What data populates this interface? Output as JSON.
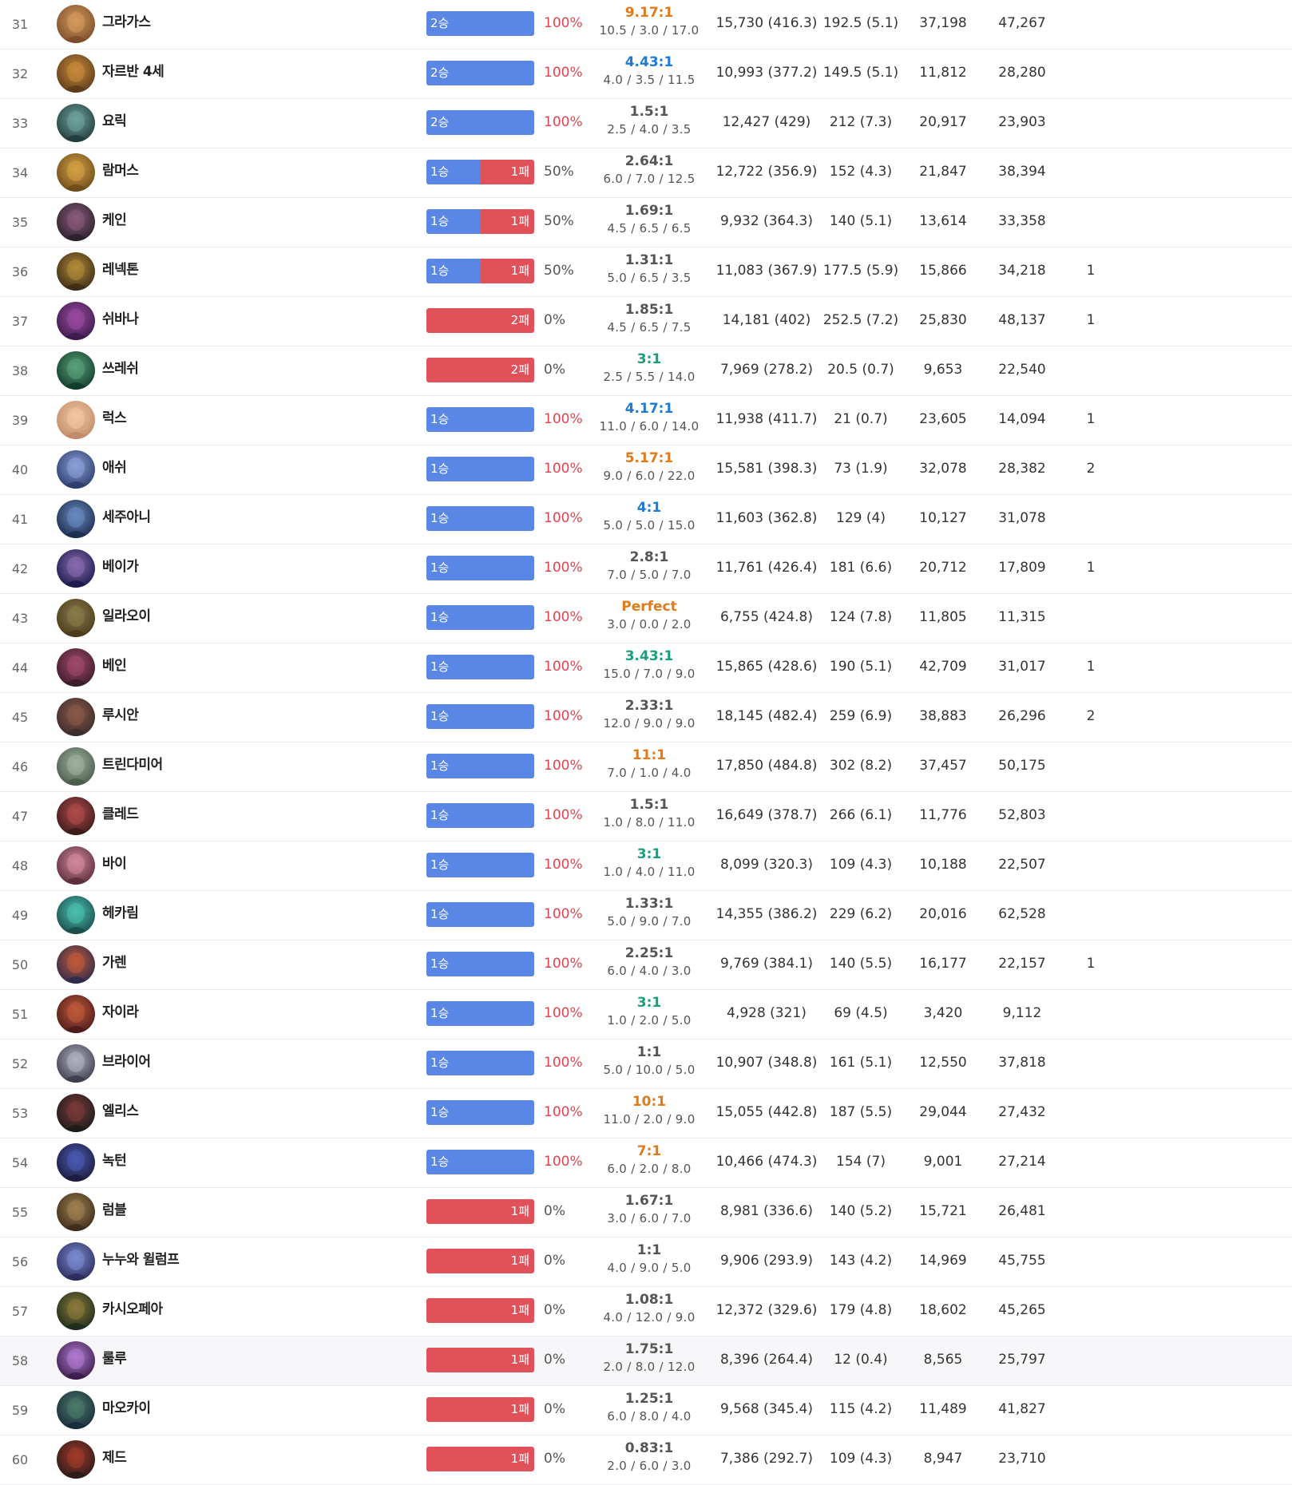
{
  "colors": {
    "win_bar": "#5a86e6",
    "loss_bar": "#e0515a",
    "win_rate_text": "#e0434e",
    "kda_gray": "#555555",
    "kda_blue": "#1f7ad6",
    "kda_green": "#1a9d7e",
    "kda_orange": "#e07a1a"
  },
  "rows": [
    {
      "rank": "31",
      "champion": "그라가스",
      "icon": "champion-portrait-icon",
      "wins": 2,
      "losses": 0,
      "wins_label": "2승",
      "losses_label": "",
      "win_rate": "100%",
      "kda_ratio": "9.17:1",
      "kda_color": "orange",
      "kda_detail": "10.5 / 3.0 / 17.0",
      "damage": "15,730 (416.3)",
      "cs": "192.5 (5.1)",
      "gold": "37,198",
      "taken": "47,267",
      "extra": ""
    },
    {
      "rank": "32",
      "champion": "자르반 4세",
      "icon": "champion-portrait-icon",
      "wins": 2,
      "losses": 0,
      "wins_label": "2승",
      "losses_label": "",
      "win_rate": "100%",
      "kda_ratio": "4.43:1",
      "kda_color": "blue",
      "kda_detail": "4.0 / 3.5 / 11.5",
      "damage": "10,993 (377.2)",
      "cs": "149.5 (5.1)",
      "gold": "11,812",
      "taken": "28,280",
      "extra": ""
    },
    {
      "rank": "33",
      "champion": "요릭",
      "icon": "champion-portrait-icon",
      "wins": 2,
      "losses": 0,
      "wins_label": "2승",
      "losses_label": "",
      "win_rate": "100%",
      "kda_ratio": "1.5:1",
      "kda_color": "gray",
      "kda_detail": "2.5 / 4.0 / 3.5",
      "damage": "12,427 (429)",
      "cs": "212 (7.3)",
      "gold": "20,917",
      "taken": "23,903",
      "extra": ""
    },
    {
      "rank": "34",
      "champion": "람머스",
      "icon": "champion-portrait-icon",
      "wins": 1,
      "losses": 1,
      "wins_label": "1승",
      "losses_label": "1패",
      "win_rate": "50%",
      "kda_ratio": "2.64:1",
      "kda_color": "gray",
      "kda_detail": "6.0 / 7.0 / 12.5",
      "damage": "12,722 (356.9)",
      "cs": "152 (4.3)",
      "gold": "21,847",
      "taken": "38,394",
      "extra": ""
    },
    {
      "rank": "35",
      "champion": "케인",
      "icon": "champion-portrait-icon",
      "wins": 1,
      "losses": 1,
      "wins_label": "1승",
      "losses_label": "1패",
      "win_rate": "50%",
      "kda_ratio": "1.69:1",
      "kda_color": "gray",
      "kda_detail": "4.5 / 6.5 / 6.5",
      "damage": "9,932 (364.3)",
      "cs": "140 (5.1)",
      "gold": "13,614",
      "taken": "33,358",
      "extra": ""
    },
    {
      "rank": "36",
      "champion": "레넥톤",
      "icon": "champion-portrait-icon",
      "wins": 1,
      "losses": 1,
      "wins_label": "1승",
      "losses_label": "1패",
      "win_rate": "50%",
      "kda_ratio": "1.31:1",
      "kda_color": "gray",
      "kda_detail": "5.0 / 6.5 / 3.5",
      "damage": "11,083 (367.9)",
      "cs": "177.5 (5.9)",
      "gold": "15,866",
      "taken": "34,218",
      "extra": "1"
    },
    {
      "rank": "37",
      "champion": "쉬바나",
      "icon": "champion-portrait-icon",
      "wins": 0,
      "losses": 2,
      "wins_label": "",
      "losses_label": "2패",
      "win_rate": "0%",
      "kda_ratio": "1.85:1",
      "kda_color": "gray",
      "kda_detail": "4.5 / 6.5 / 7.5",
      "damage": "14,181 (402)",
      "cs": "252.5 (7.2)",
      "gold": "25,830",
      "taken": "48,137",
      "extra": "1"
    },
    {
      "rank": "38",
      "champion": "쓰레쉬",
      "icon": "champion-portrait-icon",
      "wins": 0,
      "losses": 2,
      "wins_label": "",
      "losses_label": "2패",
      "win_rate": "0%",
      "kda_ratio": "3:1",
      "kda_color": "green",
      "kda_detail": "2.5 / 5.5 / 14.0",
      "damage": "7,969 (278.2)",
      "cs": "20.5 (0.7)",
      "gold": "9,653",
      "taken": "22,540",
      "extra": ""
    },
    {
      "rank": "39",
      "champion": "럭스",
      "icon": "champion-portrait-icon",
      "wins": 1,
      "losses": 0,
      "wins_label": "1승",
      "losses_label": "",
      "win_rate": "100%",
      "kda_ratio": "4.17:1",
      "kda_color": "blue",
      "kda_detail": "11.0 / 6.0 / 14.0",
      "damage": "11,938 (411.7)",
      "cs": "21 (0.7)",
      "gold": "23,605",
      "taken": "14,094",
      "extra": "1"
    },
    {
      "rank": "40",
      "champion": "애쉬",
      "icon": "champion-portrait-icon",
      "wins": 1,
      "losses": 0,
      "wins_label": "1승",
      "losses_label": "",
      "win_rate": "100%",
      "kda_ratio": "5.17:1",
      "kda_color": "orange",
      "kda_detail": "9.0 / 6.0 / 22.0",
      "damage": "15,581 (398.3)",
      "cs": "73 (1.9)",
      "gold": "32,078",
      "taken": "28,382",
      "extra": "2"
    },
    {
      "rank": "41",
      "champion": "세주아니",
      "icon": "champion-portrait-icon",
      "wins": 1,
      "losses": 0,
      "wins_label": "1승",
      "losses_label": "",
      "win_rate": "100%",
      "kda_ratio": "4:1",
      "kda_color": "blue",
      "kda_detail": "5.0 / 5.0 / 15.0",
      "damage": "11,603 (362.8)",
      "cs": "129 (4)",
      "gold": "10,127",
      "taken": "31,078",
      "extra": ""
    },
    {
      "rank": "42",
      "champion": "베이가",
      "icon": "champion-portrait-icon",
      "wins": 1,
      "losses": 0,
      "wins_label": "1승",
      "losses_label": "",
      "win_rate": "100%",
      "kda_ratio": "2.8:1",
      "kda_color": "gray",
      "kda_detail": "7.0 / 5.0 / 7.0",
      "damage": "11,761 (426.4)",
      "cs": "181 (6.6)",
      "gold": "20,712",
      "taken": "17,809",
      "extra": "1"
    },
    {
      "rank": "43",
      "champion": "일라오이",
      "icon": "champion-portrait-icon",
      "wins": 1,
      "losses": 0,
      "wins_label": "1승",
      "losses_label": "",
      "win_rate": "100%",
      "kda_ratio": "Perfect",
      "kda_color": "orange",
      "kda_detail": "3.0 / 0.0 / 2.0",
      "damage": "6,755 (424.8)",
      "cs": "124 (7.8)",
      "gold": "11,805",
      "taken": "11,315",
      "extra": ""
    },
    {
      "rank": "44",
      "champion": "베인",
      "icon": "champion-portrait-icon",
      "wins": 1,
      "losses": 0,
      "wins_label": "1승",
      "losses_label": "",
      "win_rate": "100%",
      "kda_ratio": "3.43:1",
      "kda_color": "green",
      "kda_detail": "15.0 / 7.0 / 9.0",
      "damage": "15,865 (428.6)",
      "cs": "190 (5.1)",
      "gold": "42,709",
      "taken": "31,017",
      "extra": "1"
    },
    {
      "rank": "45",
      "champion": "루시안",
      "icon": "champion-portrait-icon",
      "wins": 1,
      "losses": 0,
      "wins_label": "1승",
      "losses_label": "",
      "win_rate": "100%",
      "kda_ratio": "2.33:1",
      "kda_color": "gray",
      "kda_detail": "12.0 / 9.0 / 9.0",
      "damage": "18,145 (482.4)",
      "cs": "259 (6.9)",
      "gold": "38,883",
      "taken": "26,296",
      "extra": "2"
    },
    {
      "rank": "46",
      "champion": "트린다미어",
      "icon": "champion-portrait-icon",
      "wins": 1,
      "losses": 0,
      "wins_label": "1승",
      "losses_label": "",
      "win_rate": "100%",
      "kda_ratio": "11:1",
      "kda_color": "orange",
      "kda_detail": "7.0 / 1.0 / 4.0",
      "damage": "17,850 (484.8)",
      "cs": "302 (8.2)",
      "gold": "37,457",
      "taken": "50,175",
      "extra": ""
    },
    {
      "rank": "47",
      "champion": "클레드",
      "icon": "champion-portrait-icon",
      "wins": 1,
      "losses": 0,
      "wins_label": "1승",
      "losses_label": "",
      "win_rate": "100%",
      "kda_ratio": "1.5:1",
      "kda_color": "gray",
      "kda_detail": "1.0 / 8.0 / 11.0",
      "damage": "16,649 (378.7)",
      "cs": "266 (6.1)",
      "gold": "11,776",
      "taken": "52,803",
      "extra": ""
    },
    {
      "rank": "48",
      "champion": "바이",
      "icon": "champion-portrait-icon",
      "wins": 1,
      "losses": 0,
      "wins_label": "1승",
      "losses_label": "",
      "win_rate": "100%",
      "kda_ratio": "3:1",
      "kda_color": "green",
      "kda_detail": "1.0 / 4.0 / 11.0",
      "damage": "8,099 (320.3)",
      "cs": "109 (4.3)",
      "gold": "10,188",
      "taken": "22,507",
      "extra": ""
    },
    {
      "rank": "49",
      "champion": "헤카림",
      "icon": "champion-portrait-icon",
      "wins": 1,
      "losses": 0,
      "wins_label": "1승",
      "losses_label": "",
      "win_rate": "100%",
      "kda_ratio": "1.33:1",
      "kda_color": "gray",
      "kda_detail": "5.0 / 9.0 / 7.0",
      "damage": "14,355 (386.2)",
      "cs": "229 (6.2)",
      "gold": "20,016",
      "taken": "62,528",
      "extra": ""
    },
    {
      "rank": "50",
      "champion": "가렌",
      "icon": "champion-portrait-icon",
      "wins": 1,
      "losses": 0,
      "wins_label": "1승",
      "losses_label": "",
      "win_rate": "100%",
      "kda_ratio": "2.25:1",
      "kda_color": "gray",
      "kda_detail": "6.0 / 4.0 / 3.0",
      "damage": "9,769 (384.1)",
      "cs": "140 (5.5)",
      "gold": "16,177",
      "taken": "22,157",
      "extra": "1"
    },
    {
      "rank": "51",
      "champion": "자이라",
      "icon": "champion-portrait-icon",
      "wins": 1,
      "losses": 0,
      "wins_label": "1승",
      "losses_label": "",
      "win_rate": "100%",
      "kda_ratio": "3:1",
      "kda_color": "green",
      "kda_detail": "1.0 / 2.0 / 5.0",
      "damage": "4,928 (321)",
      "cs": "69 (4.5)",
      "gold": "3,420",
      "taken": "9,112",
      "extra": ""
    },
    {
      "rank": "52",
      "champion": "브라이어",
      "icon": "champion-portrait-icon",
      "wins": 1,
      "losses": 0,
      "wins_label": "1승",
      "losses_label": "",
      "win_rate": "100%",
      "kda_ratio": "1:1",
      "kda_color": "gray",
      "kda_detail": "5.0 / 10.0 / 5.0",
      "damage": "10,907 (348.8)",
      "cs": "161 (5.1)",
      "gold": "12,550",
      "taken": "37,818",
      "extra": ""
    },
    {
      "rank": "53",
      "champion": "엘리스",
      "icon": "champion-portrait-icon",
      "wins": 1,
      "losses": 0,
      "wins_label": "1승",
      "losses_label": "",
      "win_rate": "100%",
      "kda_ratio": "10:1",
      "kda_color": "orange",
      "kda_detail": "11.0 / 2.0 / 9.0",
      "damage": "15,055 (442.8)",
      "cs": "187 (5.5)",
      "gold": "29,044",
      "taken": "27,432",
      "extra": ""
    },
    {
      "rank": "54",
      "champion": "녹턴",
      "icon": "champion-portrait-icon",
      "wins": 1,
      "losses": 0,
      "wins_label": "1승",
      "losses_label": "",
      "win_rate": "100%",
      "kda_ratio": "7:1",
      "kda_color": "orange",
      "kda_detail": "6.0 / 2.0 / 8.0",
      "damage": "10,466 (474.3)",
      "cs": "154 (7)",
      "gold": "9,001",
      "taken": "27,214",
      "extra": ""
    },
    {
      "rank": "55",
      "champion": "럼블",
      "icon": "champion-portrait-icon",
      "wins": 0,
      "losses": 1,
      "wins_label": "",
      "losses_label": "1패",
      "win_rate": "0%",
      "kda_ratio": "1.67:1",
      "kda_color": "gray",
      "kda_detail": "3.0 / 6.0 / 7.0",
      "damage": "8,981 (336.6)",
      "cs": "140 (5.2)",
      "gold": "15,721",
      "taken": "26,481",
      "extra": ""
    },
    {
      "rank": "56",
      "champion": "누누와 윌럼프",
      "icon": "champion-portrait-icon",
      "wins": 0,
      "losses": 1,
      "wins_label": "",
      "losses_label": "1패",
      "win_rate": "0%",
      "kda_ratio": "1:1",
      "kda_color": "gray",
      "kda_detail": "4.0 / 9.0 / 5.0",
      "damage": "9,906 (293.9)",
      "cs": "143 (4.2)",
      "gold": "14,969",
      "taken": "45,755",
      "extra": ""
    },
    {
      "rank": "57",
      "champion": "카시오페아",
      "icon": "champion-portrait-icon",
      "wins": 0,
      "losses": 1,
      "wins_label": "",
      "losses_label": "1패",
      "win_rate": "0%",
      "kda_ratio": "1.08:1",
      "kda_color": "gray",
      "kda_detail": "4.0 / 12.0 / 9.0",
      "damage": "12,372 (329.6)",
      "cs": "179 (4.8)",
      "gold": "18,602",
      "taken": "45,265",
      "extra": ""
    },
    {
      "rank": "58",
      "champion": "룰루",
      "icon": "champion-portrait-icon",
      "wins": 0,
      "losses": 1,
      "wins_label": "",
      "losses_label": "1패",
      "win_rate": "0%",
      "kda_ratio": "1.75:1",
      "kda_color": "gray",
      "kda_detail": "2.0 / 8.0 / 12.0",
      "damage": "8,396 (264.4)",
      "cs": "12 (0.4)",
      "gold": "8,565",
      "taken": "25,797",
      "extra": ""
    },
    {
      "rank": "59",
      "champion": "마오카이",
      "icon": "champion-portrait-icon",
      "wins": 0,
      "losses": 1,
      "wins_label": "",
      "losses_label": "1패",
      "win_rate": "0%",
      "kda_ratio": "1.25:1",
      "kda_color": "gray",
      "kda_detail": "6.0 / 8.0 / 4.0",
      "damage": "9,568 (345.4)",
      "cs": "115 (4.2)",
      "gold": "11,489",
      "taken": "41,827",
      "extra": ""
    },
    {
      "rank": "60",
      "champion": "제드",
      "icon": "champion-portrait-icon",
      "wins": 0,
      "losses": 1,
      "wins_label": "",
      "losses_label": "1패",
      "win_rate": "0%",
      "kda_ratio": "0.83:1",
      "kda_color": "gray",
      "kda_detail": "2.0 / 6.0 / 3.0",
      "damage": "7,386 (292.7)",
      "cs": "109 (4.3)",
      "gold": "8,947",
      "taken": "23,710",
      "extra": ""
    }
  ]
}
